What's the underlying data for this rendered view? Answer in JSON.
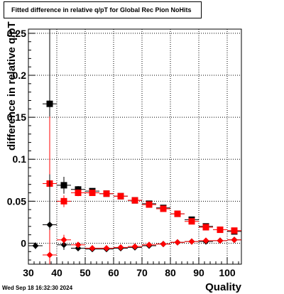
{
  "title": "Fitted difference in relative q/pT for Global Rec Pion NoHits",
  "timestamp": "Wed Sep 18 16:32:30 2024",
  "chart_data": {
    "type": "scatter",
    "xlabel": "Quality",
    "ylabel": "difference in relative q/pT",
    "xlim": [
      30,
      105
    ],
    "ylim": [
      -0.025,
      0.255
    ],
    "grid": true,
    "x_ticks": [
      30,
      40,
      50,
      60,
      70,
      80,
      90,
      100
    ],
    "y_ticks": [
      0,
      0.05,
      0.1,
      0.15,
      0.2,
      0.25
    ],
    "x_tick_labels": [
      "30",
      "40",
      "50",
      "60",
      "70",
      "80",
      "90",
      "100"
    ],
    "y_tick_labels": [
      "0",
      "0.05",
      "0.1",
      "0.15",
      "0.2",
      "0.25"
    ],
    "series": [
      {
        "color": "#000000",
        "marker": "square",
        "points": [
          {
            "x": 37.5,
            "y": 0.166,
            "err": 0.26
          },
          {
            "x": 42.5,
            "y": 0.069,
            "err": 0.01
          },
          {
            "x": 47.5,
            "y": 0.064,
            "err": 0.004
          },
          {
            "x": 52.5,
            "y": 0.062,
            "err": 0.003
          },
          {
            "x": 57.5,
            "y": 0.059,
            "err": 0.003
          },
          {
            "x": 62.5,
            "y": 0.056,
            "err": 0.003
          },
          {
            "x": 67.5,
            "y": 0.051,
            "err": 0.003
          },
          {
            "x": 72.5,
            "y": 0.047,
            "err": 0.003
          },
          {
            "x": 77.5,
            "y": 0.042,
            "err": 0.003
          },
          {
            "x": 82.5,
            "y": 0.035,
            "err": 0.003
          },
          {
            "x": 87.5,
            "y": 0.028,
            "err": 0.003
          },
          {
            "x": 92.5,
            "y": 0.02,
            "err": 0.003
          },
          {
            "x": 97.5,
            "y": 0.016,
            "err": 0.003
          },
          {
            "x": 102.5,
            "y": 0.014,
            "err": 0.003
          }
        ]
      },
      {
        "color": "#ff0000",
        "marker": "square",
        "points": [
          {
            "x": 37.5,
            "y": 0.071,
            "err": 0.08
          },
          {
            "x": 42.5,
            "y": 0.05,
            "err": 0.007
          },
          {
            "x": 47.5,
            "y": 0.06,
            "err": 0.004
          },
          {
            "x": 52.5,
            "y": 0.06,
            "err": 0.003
          },
          {
            "x": 57.5,
            "y": 0.059,
            "err": 0.003
          },
          {
            "x": 62.5,
            "y": 0.056,
            "err": 0.003
          },
          {
            "x": 67.5,
            "y": 0.051,
            "err": 0.003
          },
          {
            "x": 72.5,
            "y": 0.046,
            "err": 0.003
          },
          {
            "x": 77.5,
            "y": 0.041,
            "err": 0.003
          },
          {
            "x": 82.5,
            "y": 0.035,
            "err": 0.003
          },
          {
            "x": 87.5,
            "y": 0.026,
            "err": 0.003
          },
          {
            "x": 92.5,
            "y": 0.019,
            "err": 0.003
          },
          {
            "x": 97.5,
            "y": 0.016,
            "err": 0.003
          },
          {
            "x": 102.5,
            "y": 0.015,
            "err": 0.003
          }
        ]
      },
      {
        "color": "#000000",
        "marker": "diamond",
        "points": [
          {
            "x": 32.5,
            "y": -0.003,
            "err": 0.004
          },
          {
            "x": 37.5,
            "y": 0.022,
            "err": 0.06
          },
          {
            "x": 42.5,
            "y": -0.002,
            "err": 0.006
          },
          {
            "x": 47.5,
            "y": -0.006,
            "err": 0.003
          },
          {
            "x": 52.5,
            "y": -0.007,
            "err": 0.002
          },
          {
            "x": 57.5,
            "y": -0.007,
            "err": 0.002
          },
          {
            "x": 62.5,
            "y": -0.006,
            "err": 0.002
          },
          {
            "x": 67.5,
            "y": -0.005,
            "err": 0.002
          },
          {
            "x": 72.5,
            "y": -0.003,
            "err": 0.002
          },
          {
            "x": 77.5,
            "y": -0.001,
            "err": 0.002
          },
          {
            "x": 82.5,
            "y": 0.001,
            "err": 0.002
          },
          {
            "x": 87.5,
            "y": 0.002,
            "err": 0.002
          },
          {
            "x": 92.5,
            "y": 0.002,
            "err": 0.002
          },
          {
            "x": 97.5,
            "y": 0.003,
            "err": 0.002
          },
          {
            "x": 102.5,
            "y": 0.004,
            "err": 0.002
          }
        ]
      },
      {
        "color": "#ff0000",
        "marker": "diamond",
        "points": [
          {
            "x": 37.5,
            "y": -0.014,
            "err": 0.03
          },
          {
            "x": 42.5,
            "y": 0.004,
            "err": 0.006
          },
          {
            "x": 47.5,
            "y": -0.002,
            "err": 0.003
          },
          {
            "x": 52.5,
            "y": -0.006,
            "err": 0.002
          },
          {
            "x": 57.5,
            "y": -0.006,
            "err": 0.002
          },
          {
            "x": 62.5,
            "y": -0.005,
            "err": 0.002
          },
          {
            "x": 67.5,
            "y": -0.004,
            "err": 0.002
          },
          {
            "x": 72.5,
            "y": -0.002,
            "err": 0.002
          },
          {
            "x": 77.5,
            "y": -0.001,
            "err": 0.002
          },
          {
            "x": 82.5,
            "y": 0.001,
            "err": 0.002
          },
          {
            "x": 87.5,
            "y": 0.002,
            "err": 0.002
          },
          {
            "x": 92.5,
            "y": 0.003,
            "err": 0.002
          },
          {
            "x": 97.5,
            "y": 0.003,
            "err": 0.002
          },
          {
            "x": 102.5,
            "y": 0.004,
            "err": 0.002
          }
        ]
      }
    ]
  }
}
